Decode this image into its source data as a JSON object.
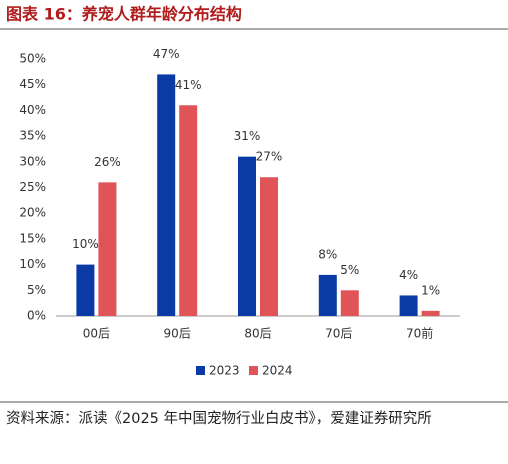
{
  "chart_data": {
    "type": "bar",
    "title": "图表 16：养宠人群年龄分布结构",
    "categories": [
      "00后",
      "90后",
      "80后",
      "70后",
      "70前"
    ],
    "series": [
      {
        "name": "2023",
        "color": "#0a3aa6",
        "values": [
          10,
          47,
          31,
          8,
          4
        ],
        "value_labels": [
          "10%",
          "47%",
          "31%",
          "8%",
          "4%"
        ]
      },
      {
        "name": "2024",
        "color": "#e05458",
        "values": [
          26,
          41,
          27,
          5,
          1
        ],
        "value_labels": [
          "26%",
          "41%",
          "27%",
          "5%",
          "1%"
        ]
      }
    ],
    "ylim": [
      0,
      50
    ],
    "yticks": [
      {
        "value": 0,
        "label": "0%"
      },
      {
        "value": 5,
        "label": "5%"
      },
      {
        "value": 10,
        "label": "10%"
      },
      {
        "value": 15,
        "label": "15%"
      },
      {
        "value": 20,
        "label": "20%"
      },
      {
        "value": 25,
        "label": "25%"
      },
      {
        "value": 30,
        "label": "30%"
      },
      {
        "value": 35,
        "label": "35%"
      },
      {
        "value": 40,
        "label": "40%"
      },
      {
        "value": 45,
        "label": "45%"
      },
      {
        "value": 50,
        "label": "50%"
      }
    ],
    "grid": false,
    "legend": "bottom",
    "source": "资料来源：派读《2025 年中国宠物行业白皮书》，爱建证券研究所"
  }
}
